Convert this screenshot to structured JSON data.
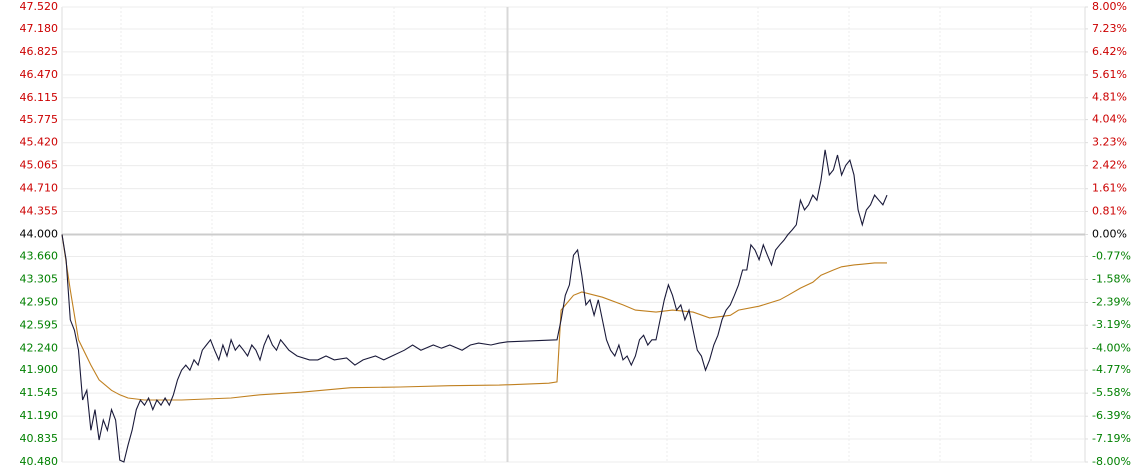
{
  "chart_data": {
    "type": "line",
    "xlim": [
      0,
      248
    ],
    "ylim": [
      40.48,
      47.52
    ],
    "yticks": [
      {
        "value": 47.52,
        "label": "47.520"
      },
      {
        "value": 47.18,
        "label": "47.180"
      },
      46.825,
      {
        "value": 46.47,
        "label": "46.470"
      },
      46.115,
      45.775,
      {
        "value": 45.42,
        "label": "45.420"
      },
      45.065,
      {
        "value": 44.71,
        "label": "44.710"
      },
      44.355,
      {
        "value": 44,
        "label": "44.000"
      },
      {
        "value": 43.66,
        "label": "43.660"
      },
      43.305,
      {
        "value": 42.95,
        "label": "42.950"
      },
      42.595,
      {
        "value": 42.24,
        "label": "42.240"
      },
      {
        "value": 41.9,
        "label": "41.900"
      },
      41.545,
      {
        "value": 41.19,
        "label": "41.190"
      },
      40.835,
      {
        "value": 40.48,
        "label": "40.480"
      }
    ],
    "y2lim": [
      -8,
      8
    ],
    "y2ticks": [
      {
        "value": 8,
        "label": "8.00%"
      },
      {
        "value": 7.23,
        "label": "7.23%"
      },
      {
        "value": 6.42,
        "label": "6.42%"
      },
      {
        "value": 5.61,
        "label": "5.61%"
      },
      {
        "value": 4.81,
        "label": "4.81%"
      },
      {
        "value": 4.04,
        "label": "4.04%"
      },
      {
        "value": 3.23,
        "label": "3.23%"
      },
      {
        "value": 2.42,
        "label": "2.42%"
      },
      {
        "value": 1.61,
        "label": "1.61%"
      },
      {
        "value": 0.81,
        "label": "0.81%"
      },
      {
        "value": 0,
        "label": "0.00%"
      },
      {
        "value": -0.77,
        "label": "-0.77%"
      },
      {
        "value": -1.58,
        "label": "-1.58%"
      },
      {
        "value": -2.39,
        "label": "-2.39%"
      },
      {
        "value": -3.19,
        "label": "-3.19%"
      },
      {
        "value": -4,
        "label": "-4.00%"
      },
      {
        "value": -4.77,
        "label": "-4.77%"
      },
      {
        "value": -5.58,
        "label": "-5.58%"
      },
      {
        "value": -6.39,
        "label": "-6.39%"
      },
      {
        "value": -7.19,
        "label": "-7.19%"
      },
      {
        "value": -8,
        "label": "-8.00%"
      }
    ],
    "grid": true,
    "up_color": "#cc0000",
    "down_color": "#008000",
    "flat_color": "#000000",
    "series": [
      {
        "color": "#1a1a3a",
        "x": [
          0,
          1,
          2,
          3,
          4,
          5,
          6,
          7,
          8,
          9,
          10,
          11,
          12,
          13,
          14,
          15,
          16,
          17,
          18,
          19,
          20,
          21,
          22,
          23,
          24,
          25,
          26,
          27,
          28,
          29,
          30,
          31,
          32,
          33,
          34,
          35,
          36,
          37,
          38,
          39,
          40,
          41,
          42,
          43,
          44,
          45,
          46,
          47,
          48,
          49,
          50,
          51,
          52,
          53,
          54,
          55,
          57,
          60,
          62,
          64,
          66,
          69,
          71,
          73,
          76,
          78,
          80,
          83,
          85,
          87,
          90,
          92,
          94,
          97,
          99,
          101,
          104,
          106,
          108,
          120,
          121,
          122,
          123,
          124,
          125,
          126,
          127,
          128,
          129,
          130,
          131,
          132,
          133,
          134,
          135,
          136,
          137,
          138,
          139,
          140,
          141,
          142,
          143,
          144,
          145,
          146,
          147,
          148,
          149,
          150,
          151,
          152,
          153,
          154,
          155,
          156,
          157,
          158,
          159,
          160,
          161,
          162,
          163,
          164,
          165,
          166,
          167,
          168,
          169,
          170,
          171,
          172,
          173,
          174,
          175,
          176,
          177,
          178,
          179,
          180,
          181,
          182,
          183,
          184,
          185,
          186,
          187,
          188,
          189,
          190,
          191,
          192,
          193,
          194,
          195,
          196,
          197,
          198,
          199,
          200
        ],
        "values": [
          44.0,
          43.61,
          42.68,
          42.52,
          42.21,
          41.44,
          41.59,
          40.97,
          41.29,
          40.82,
          41.13,
          40.97,
          41.29,
          41.13,
          40.51,
          40.48,
          40.74,
          40.97,
          41.29,
          41.44,
          41.36,
          41.47,
          41.29,
          41.44,
          41.36,
          41.47,
          41.36,
          41.52,
          41.75,
          41.9,
          41.98,
          41.9,
          42.06,
          41.98,
          42.21,
          42.29,
          42.37,
          42.21,
          42.06,
          42.29,
          42.12,
          42.37,
          42.21,
          42.29,
          42.21,
          42.12,
          42.29,
          42.21,
          42.06,
          42.29,
          42.44,
          42.29,
          42.21,
          42.37,
          42.29,
          42.21,
          42.12,
          42.06,
          42.06,
          42.12,
          42.06,
          42.09,
          41.98,
          42.06,
          42.12,
          42.06,
          42.12,
          42.21,
          42.29,
          42.21,
          42.29,
          42.24,
          42.29,
          42.21,
          42.29,
          42.32,
          42.29,
          42.32,
          42.34,
          42.37,
          42.68,
          43.06,
          43.22,
          43.68,
          43.76,
          43.37,
          42.91,
          42.99,
          42.75,
          42.99,
          42.68,
          42.37,
          42.21,
          42.12,
          42.29,
          42.06,
          42.12,
          41.98,
          42.12,
          42.37,
          42.44,
          42.29,
          42.37,
          42.37,
          42.68,
          42.99,
          43.22,
          43.06,
          42.83,
          42.91,
          42.68,
          42.83,
          42.52,
          42.21,
          42.12,
          41.9,
          42.06,
          42.29,
          42.44,
          42.68,
          42.83,
          42.91,
          43.06,
          43.22,
          43.45,
          43.45,
          43.84,
          43.76,
          43.61,
          43.84,
          43.68,
          43.53,
          43.76,
          43.84,
          43.91,
          44.0,
          44.07,
          44.15,
          44.53,
          44.38,
          44.46,
          44.61,
          44.53,
          44.84,
          45.31,
          44.92,
          45.0,
          45.23,
          44.92,
          45.07,
          45.15,
          44.92,
          44.38,
          44.15,
          44.38,
          44.46,
          44.61,
          44.53,
          44.46,
          44.61
        ]
      },
      {
        "color": "#c08020",
        "x": [
          0,
          2,
          4,
          7,
          9,
          12,
          14,
          16,
          20,
          29,
          41,
          48,
          58,
          63,
          70,
          82,
          94,
          106,
          118,
          120,
          121,
          124,
          126,
          131,
          136,
          139,
          144,
          148,
          153,
          157,
          162,
          164,
          169,
          174,
          176,
          179,
          182,
          184,
          187,
          189,
          192,
          194,
          197,
          200
        ],
        "values": [
          44.0,
          43.14,
          42.37,
          41.98,
          41.75,
          41.59,
          41.52,
          41.47,
          41.44,
          41.44,
          41.47,
          41.52,
          41.56,
          41.59,
          41.63,
          41.64,
          41.66,
          41.67,
          41.7,
          41.72,
          42.83,
          43.06,
          43.11,
          43.03,
          42.91,
          42.83,
          42.8,
          42.83,
          42.8,
          42.71,
          42.75,
          42.83,
          42.89,
          42.99,
          43.06,
          43.17,
          43.26,
          43.37,
          43.45,
          43.5,
          43.53,
          43.54,
          43.56,
          43.56
        ]
      }
    ]
  }
}
